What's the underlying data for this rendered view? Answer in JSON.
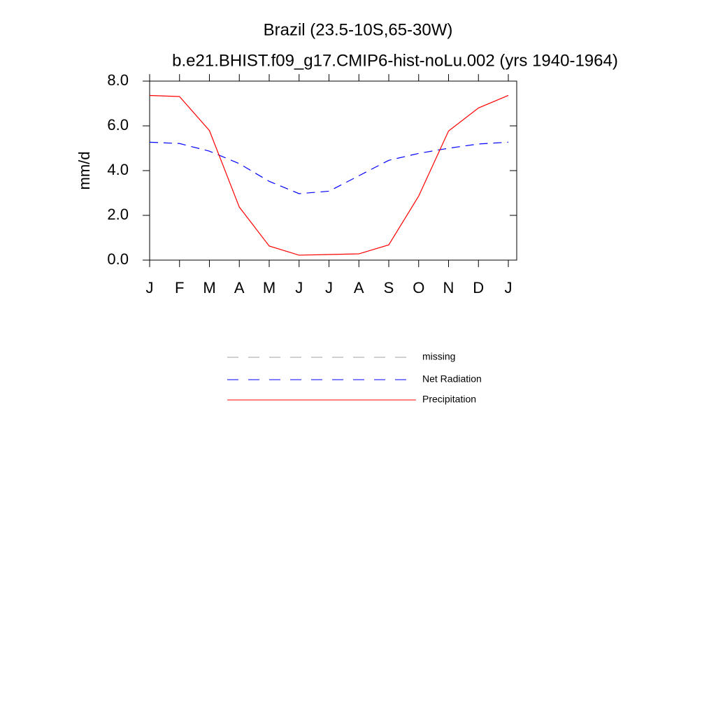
{
  "chart_data": {
    "type": "line",
    "title": "Brazil (23.5-10S,65-30W)",
    "subtitle": "b.e21.BHIST.f09_g17.CMIP6-hist-noLu.002 (yrs 1940-1964)",
    "y_label": "mm/d",
    "categories": [
      "J",
      "F",
      "M",
      "A",
      "M",
      "J",
      "J",
      "A",
      "S",
      "O",
      "N",
      "D",
      "J"
    ],
    "series": [
      {
        "name": "missing",
        "color": "#a0a0a0",
        "dash": true,
        "values": [
          null,
          null,
          null,
          null,
          null,
          null,
          null,
          null,
          null,
          null,
          null,
          null,
          null
        ]
      },
      {
        "name": "Net Radiation",
        "color": "#0000ff",
        "dash": true,
        "values": [
          5.27,
          5.21,
          4.87,
          4.31,
          3.52,
          2.97,
          3.08,
          3.77,
          4.46,
          4.77,
          5.0,
          5.19,
          5.27
        ]
      },
      {
        "name": "Precipitation",
        "color": "#ff0000",
        "dash": false,
        "values": [
          7.36,
          7.31,
          5.79,
          2.37,
          0.63,
          0.22,
          0.25,
          0.28,
          0.68,
          2.86,
          5.77,
          6.8,
          7.36
        ]
      }
    ],
    "ylim": [
      0,
      8
    ],
    "yticks": [
      {
        "value": 0,
        "label": "0.0"
      },
      {
        "value": 2,
        "label": "2.0"
      },
      {
        "value": 4,
        "label": "4.0"
      },
      {
        "value": 6,
        "label": "6.0"
      },
      {
        "value": 8,
        "label": "8.0"
      }
    ]
  }
}
